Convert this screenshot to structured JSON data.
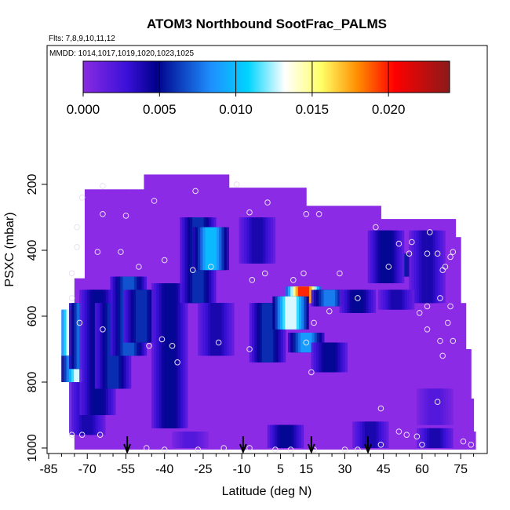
{
  "chart_data": {
    "type": "heatmap",
    "title": "ATOM3 Northbound SootFrac_PALMS",
    "subtitle_flights": "Flts: 7,8,9,10,11,12",
    "subtitle_dates": "MMDD: 1014,1017,1019,1020,1023,1025",
    "xlabel": "Latitude (deg N)",
    "ylabel": "PSXC (mbar)",
    "xlim": [
      -85,
      85
    ],
    "ylim": [
      1000,
      100
    ],
    "x_ticks": [
      -85,
      -70,
      -55,
      -40,
      -25,
      -10,
      5,
      15,
      30,
      45,
      60,
      75
    ],
    "y_ticks": [
      200,
      400,
      600,
      800,
      1000
    ],
    "colorbar": {
      "min": 0,
      "max": 0.024,
      "ticks": [
        "0.000",
        "0.005",
        "0.010",
        "0.015",
        "0.020"
      ],
      "colors": [
        "#8a2be2",
        "#00008b",
        "#1e90ff",
        "#00bfff",
        "#ffffff",
        "#ffff99",
        "#ff8c00",
        "#ff0000",
        "#8b0000"
      ]
    },
    "background_color": "#8b2be6",
    "envelope": [
      [
        -75,
        485,
        1000
      ],
      [
        -71,
        215,
        1000
      ],
      [
        -55,
        215,
        1000
      ],
      [
        -48,
        170,
        1000
      ],
      [
        -25,
        170,
        1000
      ],
      [
        -15,
        210,
        1000
      ],
      [
        10,
        210,
        1000
      ],
      [
        15,
        265,
        1000
      ],
      [
        30,
        265,
        1000
      ],
      [
        40,
        265,
        1000
      ],
      [
        44,
        305,
        1000
      ],
      [
        70,
        305,
        1000
      ],
      [
        73,
        360,
        1000
      ],
      [
        75,
        560,
        1000
      ],
      [
        77,
        700,
        1000
      ],
      [
        79,
        850,
        1000
      ],
      [
        80,
        950,
        1000
      ]
    ],
    "features": [
      {
        "lat": -73,
        "p_top": 580,
        "p_bot": 720,
        "value": 0.022
      },
      {
        "lat": -73,
        "p_top": 720,
        "p_bot": 800,
        "value": 0.013
      },
      {
        "lat": -70,
        "p_top": 560,
        "p_bot": 760,
        "value": 0.01
      },
      {
        "lat": -70,
        "p_top": 800,
        "p_bot": 960,
        "value": 0.004
      },
      {
        "lat": -66,
        "p_top": 520,
        "p_bot": 900,
        "value": 0.005
      },
      {
        "lat": -60,
        "p_top": 560,
        "p_bot": 820,
        "value": 0.006
      },
      {
        "lat": -54,
        "p_top": 480,
        "p_bot": 720,
        "value": 0.007
      },
      {
        "lat": -49,
        "p_top": 520,
        "p_bot": 680,
        "value": 0.006
      },
      {
        "lat": -38,
        "p_top": 500,
        "p_bot": 940,
        "value": 0.005
      },
      {
        "lat": -27,
        "p_top": 300,
        "p_bot": 560,
        "value": 0.006
      },
      {
        "lat": -22,
        "p_top": 330,
        "p_bot": 460,
        "value": 0.01
      },
      {
        "lat": -20,
        "p_top": 560,
        "p_bot": 720,
        "value": 0.004
      },
      {
        "lat": -4,
        "p_top": 300,
        "p_bot": 440,
        "value": 0.004
      },
      {
        "lat": 0,
        "p_top": 560,
        "p_bot": 740,
        "value": 0.006
      },
      {
        "lat": 14,
        "p_top": 510,
        "p_bot": 560,
        "value": 0.02
      },
      {
        "lat": 9,
        "p_top": 540,
        "p_bot": 640,
        "value": 0.013
      },
      {
        "lat": 24,
        "p_top": 520,
        "p_bot": 570,
        "value": 0.008
      },
      {
        "lat": 15,
        "p_top": 650,
        "p_bot": 710,
        "value": 0.009
      },
      {
        "lat": 24,
        "p_top": 680,
        "p_bot": 770,
        "value": 0.005
      },
      {
        "lat": 35,
        "p_top": 520,
        "p_bot": 590,
        "value": 0.005
      },
      {
        "lat": 48,
        "p_top": 410,
        "p_bot": 480,
        "value": 0.011
      },
      {
        "lat": 46,
        "p_top": 340,
        "p_bot": 500,
        "value": 0.005
      },
      {
        "lat": 62,
        "p_top": 340,
        "p_bot": 560,
        "value": 0.004
      },
      {
        "lat": 50,
        "p_top": 520,
        "p_bot": 580,
        "value": 0.004
      },
      {
        "lat": 7,
        "p_top": 930,
        "p_bot": 1000,
        "value": 0.005
      },
      {
        "lat": 40,
        "p_top": 920,
        "p_bot": 1000,
        "value": 0.004
      },
      {
        "lat": 65,
        "p_top": 940,
        "p_bot": 1000,
        "value": 0.004
      },
      {
        "lat": 65,
        "p_top": 820,
        "p_bot": 930,
        "value": 0.002
      },
      {
        "lat": -30,
        "p_top": 950,
        "p_bot": 1000,
        "value": 0.002
      }
    ],
    "sample_points": [
      [
        -72,
        240
      ],
      [
        -64,
        205
      ],
      [
        -64,
        290
      ],
      [
        -55,
        295
      ],
      [
        -44,
        250
      ],
      [
        -28,
        220
      ],
      [
        -12,
        200
      ],
      [
        -7,
        285
      ],
      [
        0,
        255
      ],
      [
        15,
        290
      ],
      [
        20,
        290
      ],
      [
        -74,
        330
      ],
      [
        -74,
        390
      ],
      [
        -66,
        405
      ],
      [
        -57,
        405
      ],
      [
        -50,
        450
      ],
      [
        -40,
        430
      ],
      [
        -29,
        460
      ],
      [
        -22,
        450
      ],
      [
        -6,
        490
      ],
      [
        -1,
        470
      ],
      [
        10,
        490
      ],
      [
        14,
        470
      ],
      [
        28,
        470
      ],
      [
        35,
        545
      ],
      [
        42,
        330
      ],
      [
        47,
        450
      ],
      [
        51,
        380
      ],
      [
        55,
        410
      ],
      [
        56,
        375
      ],
      [
        62,
        410
      ],
      [
        63,
        345
      ],
      [
        66,
        410
      ],
      [
        71,
        420
      ],
      [
        68,
        460
      ],
      [
        69,
        450
      ],
      [
        72,
        405
      ],
      [
        67,
        545
      ],
      [
        62,
        570
      ],
      [
        71,
        570
      ],
      [
        -76,
        470
      ],
      [
        -76,
        545
      ],
      [
        -73,
        620
      ],
      [
        -64,
        640
      ],
      [
        -46,
        690
      ],
      [
        -41,
        670
      ],
      [
        -37,
        690
      ],
      [
        -19,
        680
      ],
      [
        -7,
        700
      ],
      [
        18,
        620
      ],
      [
        24,
        585
      ],
      [
        15,
        680
      ],
      [
        17,
        770
      ],
      [
        -35,
        740
      ],
      [
        59,
        590
      ],
      [
        62,
        640
      ],
      [
        70,
        620
      ],
      [
        67,
        675
      ],
      [
        72,
        675
      ],
      [
        68,
        720
      ],
      [
        66,
        860
      ],
      [
        -65,
        960
      ],
      [
        -76,
        960
      ],
      [
        -47,
        1000
      ],
      [
        -40,
        1005
      ],
      [
        -27,
        1005
      ],
      [
        -17,
        1000
      ],
      [
        -7,
        1000
      ],
      [
        3,
        1005
      ],
      [
        9,
        1005
      ],
      [
        18,
        1005
      ],
      [
        30,
        1005
      ],
      [
        35,
        1005
      ],
      [
        44,
        990
      ],
      [
        54,
        960
      ],
      [
        60,
        990
      ],
      [
        76,
        980
      ],
      [
        79,
        990
      ],
      [
        44,
        880
      ],
      [
        51,
        950
      ],
      [
        58,
        965
      ],
      [
        -72,
        960
      ]
    ],
    "markers": [
      {
        "lat": -54.5,
        "label": ""
      },
      {
        "lat": -9.5,
        "label": ""
      },
      {
        "lat": 17,
        "label": ""
      },
      {
        "lat": 39,
        "label": ""
      }
    ]
  }
}
